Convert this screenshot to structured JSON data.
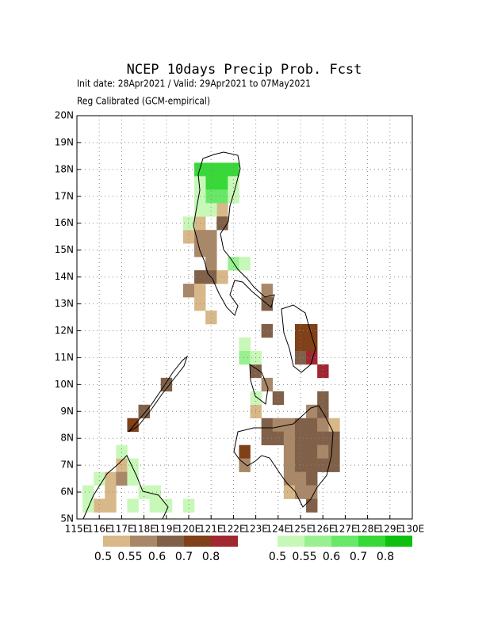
{
  "map": {
    "title": "NCEP 10days Precip Prob. Fcst",
    "subtitle": "Init date: 28Apr2021 / Valid: 29Apr2021 to 07May2021",
    "method": "Reg Calibrated (GCM-empirical)",
    "lonlim": [
      115,
      130
    ],
    "latlim": [
      5,
      20
    ],
    "xticks": [
      {
        "value": 115,
        "label": "115E"
      },
      {
        "value": 116,
        "label": "116E"
      },
      {
        "value": 117,
        "label": "117E"
      },
      {
        "value": 118,
        "label": "118E"
      },
      {
        "value": 119,
        "label": "119E"
      },
      {
        "value": 120,
        "label": "120E"
      },
      {
        "value": 121,
        "label": "121E"
      },
      {
        "value": 122,
        "label": "122E"
      },
      {
        "value": 123,
        "label": "123E"
      },
      {
        "value": 124,
        "label": "124E"
      },
      {
        "value": 125,
        "label": "125E"
      },
      {
        "value": 126,
        "label": "126E"
      },
      {
        "value": 127,
        "label": "127E"
      },
      {
        "value": 128,
        "label": "128E"
      },
      {
        "value": 129,
        "label": "129E"
      },
      {
        "value": 130,
        "label": "130E"
      }
    ],
    "yticks": [
      {
        "value": 5,
        "label": "5N"
      },
      {
        "value": 6,
        "label": "6N"
      },
      {
        "value": 7,
        "label": "7N"
      },
      {
        "value": 8,
        "label": "8N"
      },
      {
        "value": 9,
        "label": "9N"
      },
      {
        "value": 10,
        "label": "10N"
      },
      {
        "value": 11,
        "label": "11N"
      },
      {
        "value": 12,
        "label": "12N"
      },
      {
        "value": 13,
        "label": "13N"
      },
      {
        "value": 14,
        "label": "14N"
      },
      {
        "value": 15,
        "label": "15N"
      },
      {
        "value": 16,
        "label": "16N"
      },
      {
        "value": 17,
        "label": "17N"
      },
      {
        "value": 18,
        "label": "18N"
      },
      {
        "value": 19,
        "label": "19N"
      },
      {
        "value": 20,
        "label": "20N"
      }
    ],
    "grid": true,
    "dry_levels": [
      0.5,
      0.55,
      0.6,
      0.7,
      0.8
    ],
    "dry_colors": [
      "#d8b888",
      "#a88868",
      "#806048",
      "#804018",
      "#a02830"
    ],
    "wet_levels": [
      0.5,
      0.55,
      0.6,
      0.7,
      0.8
    ],
    "wet_colors": [
      "#c8f8b8",
      "#98f090",
      "#68e868",
      "#38d838",
      "#10c010"
    ],
    "dry_cells": [
      [
        121.25,
        16.25,
        0.5
      ],
      [
        121.25,
        15.75,
        0.6
      ],
      [
        120.25,
        15.75,
        0.5
      ],
      [
        119.75,
        15.25,
        0.5
      ],
      [
        120.25,
        15.25,
        0.55
      ],
      [
        120.75,
        15.25,
        0.55
      ],
      [
        120.25,
        14.75,
        0.55
      ],
      [
        120.75,
        14.75,
        0.55
      ],
      [
        120.75,
        14.25,
        0.55
      ],
      [
        120.25,
        13.75,
        0.6
      ],
      [
        120.75,
        13.75,
        0.6
      ],
      [
        121.25,
        13.75,
        0.5
      ],
      [
        119.75,
        13.25,
        0.55
      ],
      [
        120.25,
        13.25,
        0.5
      ],
      [
        120.25,
        12.75,
        0.5
      ],
      [
        120.75,
        12.25,
        0.5
      ],
      [
        123.25,
        13.25,
        0.55
      ],
      [
        123.25,
        12.75,
        0.6
      ],
      [
        123.25,
        11.75,
        0.6
      ],
      [
        122.25,
        11.25,
        0.5
      ],
      [
        124.75,
        11.75,
        0.7
      ],
      [
        125.25,
        11.75,
        0.7
      ],
      [
        124.75,
        11.25,
        0.7
      ],
      [
        125.25,
        11.25,
        0.7
      ],
      [
        124.75,
        10.75,
        0.6
      ],
      [
        125.25,
        10.75,
        0.8
      ],
      [
        125.75,
        10.25,
        0.8
      ],
      [
        122.75,
        10.25,
        0.6
      ],
      [
        123.25,
        9.75,
        0.55
      ],
      [
        123.75,
        9.25,
        0.6
      ],
      [
        122.75,
        8.75,
        0.5
      ],
      [
        118.75,
        9.75,
        0.6
      ],
      [
        117.75,
        8.75,
        0.6
      ],
      [
        117.25,
        8.25,
        0.7
      ],
      [
        125.75,
        9.25,
        0.6
      ],
      [
        125.25,
        8.75,
        0.55
      ],
      [
        125.75,
        8.75,
        0.6
      ],
      [
        126.25,
        8.25,
        0.5
      ],
      [
        123.25,
        8.25,
        0.6
      ],
      [
        123.75,
        8.25,
        0.55
      ],
      [
        124.25,
        8.25,
        0.55
      ],
      [
        124.75,
        8.25,
        0.6
      ],
      [
        125.25,
        8.25,
        0.6
      ],
      [
        125.75,
        8.25,
        0.55
      ],
      [
        123.25,
        7.75,
        0.6
      ],
      [
        123.75,
        7.75,
        0.6
      ],
      [
        124.25,
        7.75,
        0.55
      ],
      [
        124.75,
        7.75,
        0.6
      ],
      [
        125.25,
        7.75,
        0.6
      ],
      [
        125.75,
        7.75,
        0.6
      ],
      [
        126.25,
        7.75,
        0.6
      ],
      [
        122.25,
        7.25,
        0.7
      ],
      [
        124.25,
        7.25,
        0.55
      ],
      [
        124.75,
        7.25,
        0.6
      ],
      [
        125.25,
        7.25,
        0.6
      ],
      [
        125.75,
        7.25,
        0.55
      ],
      [
        126.25,
        7.25,
        0.6
      ],
      [
        122.25,
        6.75,
        0.55
      ],
      [
        124.25,
        6.75,
        0.55
      ],
      [
        124.75,
        6.75,
        0.6
      ],
      [
        125.25,
        6.75,
        0.6
      ],
      [
        125.75,
        6.75,
        0.6
      ],
      [
        126.25,
        6.75,
        0.6
      ],
      [
        124.25,
        6.25,
        0.55
      ],
      [
        124.75,
        6.25,
        0.55
      ],
      [
        125.25,
        6.25,
        0.6
      ],
      [
        124.25,
        5.75,
        0.5
      ],
      [
        124.75,
        5.75,
        0.55
      ],
      [
        125.25,
        5.75,
        0.55
      ],
      [
        125.25,
        5.25,
        0.6
      ],
      [
        116.25,
        6.25,
        0.5
      ],
      [
        116.25,
        5.75,
        0.5
      ],
      [
        116.75,
        6.75,
        0.5
      ],
      [
        116.75,
        6.25,
        0.55
      ],
      [
        115.75,
        5.25,
        0.5
      ],
      [
        116.25,
        5.25,
        0.5
      ]
    ],
    "wet_cells": [
      [
        120.25,
        17.75,
        0.7
      ],
      [
        120.75,
        17.75,
        0.7
      ],
      [
        121.25,
        17.75,
        0.7
      ],
      [
        121.75,
        17.75,
        0.7
      ],
      [
        120.75,
        17.25,
        0.7
      ],
      [
        121.25,
        17.25,
        0.7
      ],
      [
        121.75,
        17.25,
        0.5
      ],
      [
        120.25,
        17.25,
        0.5
      ],
      [
        120.75,
        16.75,
        0.6
      ],
      [
        121.25,
        16.75,
        0.6
      ],
      [
        121.75,
        16.75,
        0.5
      ],
      [
        120.25,
        16.75,
        0.5
      ],
      [
        120.25,
        16.25,
        0.5
      ],
      [
        120.75,
        16.25,
        0.5
      ],
      [
        119.75,
        15.75,
        0.5
      ],
      [
        121.75,
        14.25,
        0.55
      ],
      [
        122.25,
        14.25,
        0.5
      ],
      [
        122.25,
        11.25,
        0.5
      ],
      [
        122.25,
        10.75,
        0.55
      ],
      [
        122.75,
        10.75,
        0.5
      ],
      [
        122.75,
        9.25,
        0.5
      ],
      [
        115.25,
        5.75,
        0.5
      ],
      [
        115.75,
        6.25,
        0.5
      ],
      [
        116.75,
        7.25,
        0.5
      ],
      [
        117.25,
        6.75,
        0.5
      ],
      [
        117.25,
        6.25,
        0.5
      ],
      [
        117.75,
        5.75,
        0.5
      ],
      [
        118.25,
        5.75,
        0.5
      ],
      [
        117.25,
        5.25,
        0.5
      ],
      [
        118.25,
        5.25,
        0.5
      ],
      [
        118.75,
        5.25,
        0.5
      ],
      [
        115.25,
        5.25,
        0.5
      ],
      [
        119.75,
        5.25,
        0.5
      ]
    ]
  }
}
